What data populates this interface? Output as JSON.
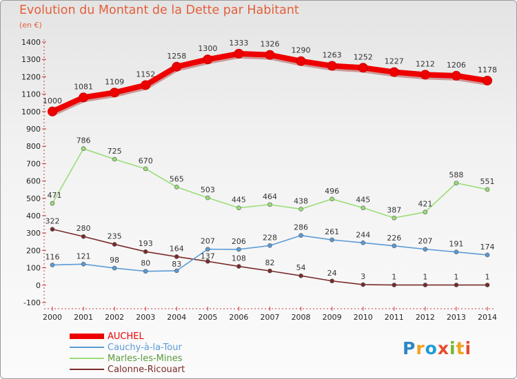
{
  "title": "Evolution du Montant de la Dette par Habitant",
  "unit": "(en €)",
  "logo": {
    "letters": [
      "P",
      "r",
      "o",
      "x",
      "i",
      "t",
      "i"
    ]
  },
  "chart_data": {
    "type": "line",
    "title": "Evolution du Montant de la Dette par Habitant",
    "ylabel": "(en €)",
    "xlabel": "",
    "x": [
      2000,
      2001,
      2002,
      2003,
      2004,
      2005,
      2006,
      2007,
      2008,
      2009,
      2010,
      2011,
      2012,
      2013,
      2014
    ],
    "ylim": [
      -100,
      1400
    ],
    "yticks": [
      -100,
      0,
      100,
      200,
      300,
      400,
      500,
      600,
      700,
      800,
      900,
      1000,
      1100,
      1200,
      1300,
      1400
    ],
    "grid": false,
    "legend": "bottom-left",
    "series": [
      {
        "name": "AUCHEL",
        "color": "#ee0000",
        "values": [
          1000,
          1081,
          1109,
          1152,
          1258,
          1300,
          1333,
          1326,
          1290,
          1263,
          1252,
          1227,
          1212,
          1206,
          1178
        ]
      },
      {
        "name": "Cauchy-à-la-Tour",
        "color": "#5b9bd5",
        "values": [
          116,
          121,
          98,
          80,
          83,
          207,
          206,
          228,
          286,
          261,
          244,
          226,
          207,
          191,
          174
        ]
      },
      {
        "name": "Marles-les-Mines",
        "color": "#99dd77",
        "values": [
          471,
          786,
          725,
          670,
          565,
          503,
          445,
          464,
          438,
          496,
          445,
          387,
          421,
          588,
          551
        ]
      },
      {
        "name": "Calonne-Ricouart",
        "color": "#7a2a2a",
        "values": [
          322,
          280,
          235,
          193,
          164,
          137,
          108,
          82,
          54,
          24,
          3,
          1,
          1,
          1,
          1
        ]
      }
    ]
  }
}
